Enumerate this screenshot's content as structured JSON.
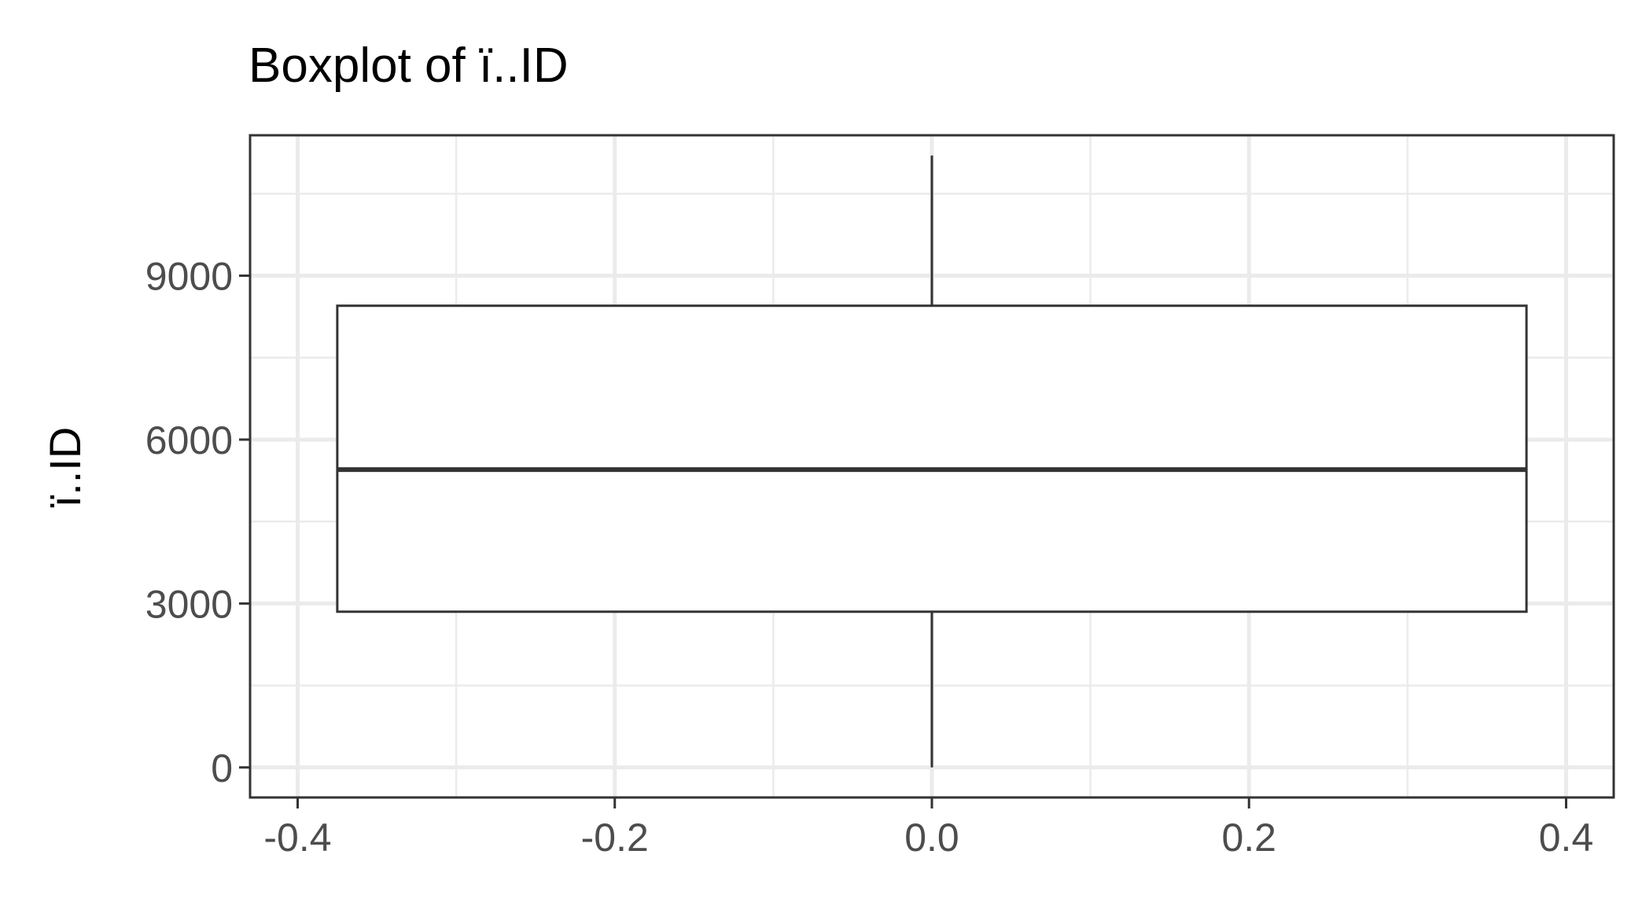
{
  "chart_data": {
    "type": "boxplot",
    "title": "Boxplot of ï..ID",
    "xlabel": "",
    "ylabel": "ï..ID",
    "xlim": [
      -0.43,
      0.43
    ],
    "ylim": [
      -550,
      11570
    ],
    "x_ticks": [
      -0.4,
      -0.2,
      0.0,
      0.2,
      0.4
    ],
    "x_tick_labels": [
      "-0.4",
      "-0.2",
      "0.0",
      "0.2",
      "0.4"
    ],
    "y_ticks": [
      0,
      3000,
      6000,
      9000
    ],
    "y_tick_labels": [
      "0",
      "3000",
      "6000",
      "9000"
    ],
    "grid": true,
    "box": {
      "x_center": 0.0,
      "x_left": -0.375,
      "x_right": 0.375,
      "whisker_low": 0,
      "q1": 2850,
      "median": 5450,
      "q3": 8450,
      "whisker_high": 11200
    }
  }
}
